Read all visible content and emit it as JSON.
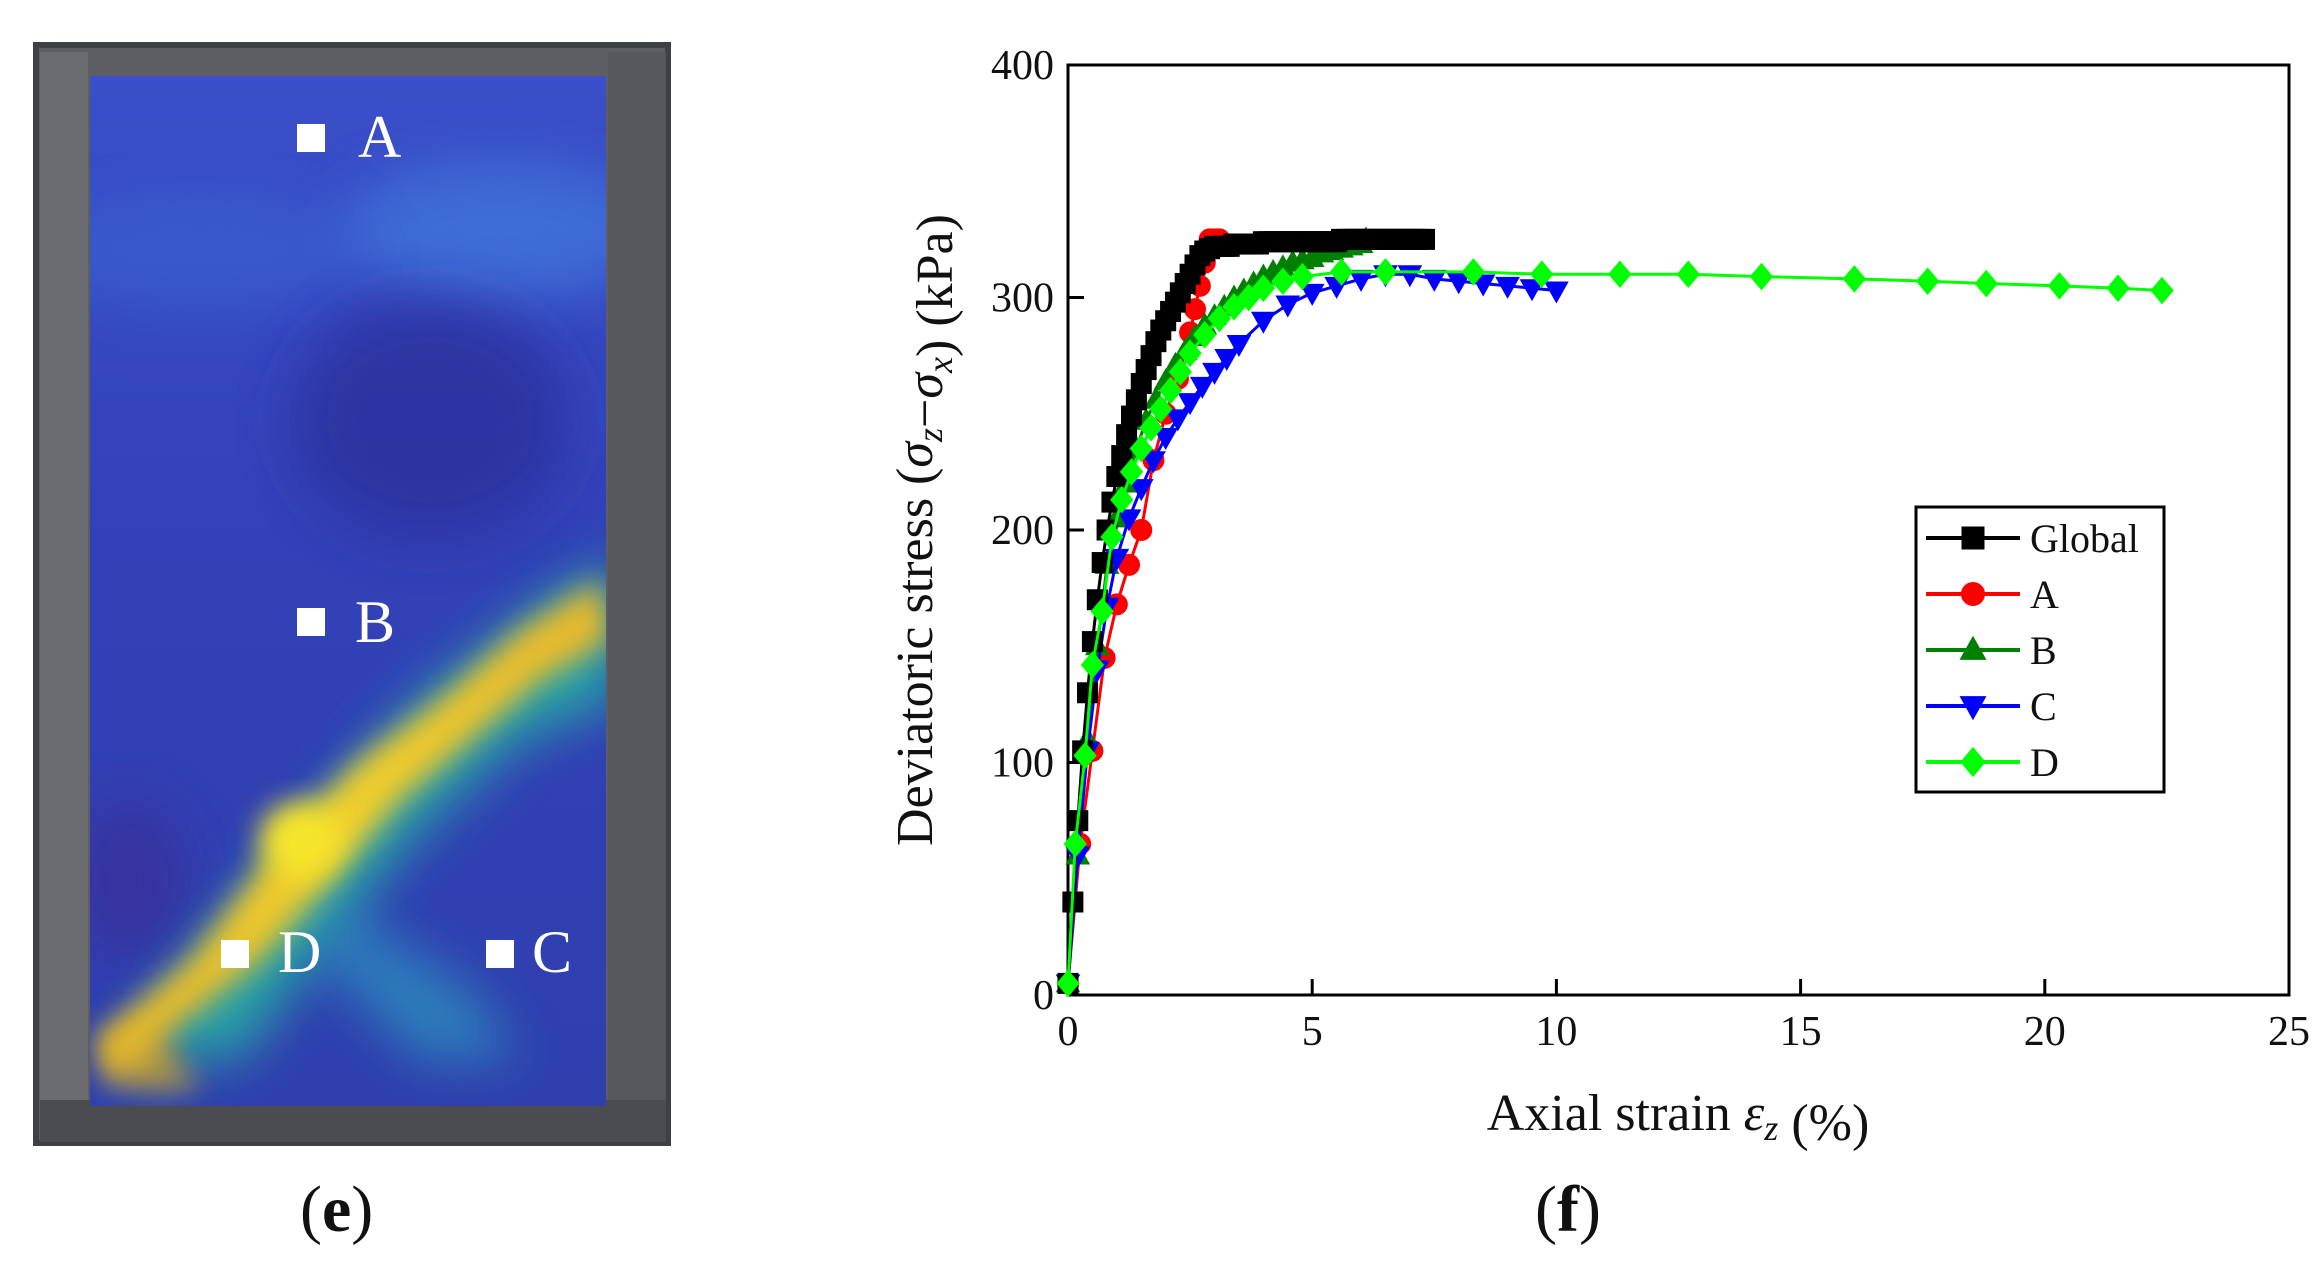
{
  "figure": {
    "panel_e": {
      "label": "e",
      "points": [
        "A",
        "B",
        "C",
        "D"
      ]
    },
    "panel_f": {
      "label": "f"
    }
  },
  "chart_data": {
    "type": "line",
    "title": "",
    "xlabel": "Axial strain εz (%)",
    "ylabel": "Deviatoric stress (σz−σx) (kPa)",
    "xlim": [
      0,
      25
    ],
    "ylim": [
      0,
      400
    ],
    "xticks": [
      0,
      5,
      10,
      15,
      20,
      25
    ],
    "yticks": [
      0,
      100,
      200,
      300,
      400
    ],
    "grid": false,
    "legend_position": "right",
    "series": [
      {
        "name": "Global",
        "color": "#000000",
        "marker": "square",
        "x": [
          0.0,
          0.1,
          0.2,
          0.3,
          0.4,
          0.5,
          0.6,
          0.7,
          0.8,
          0.9,
          1.0,
          1.1,
          1.2,
          1.3,
          1.4,
          1.5,
          1.6,
          1.7,
          1.8,
          1.9,
          2.0,
          2.1,
          2.2,
          2.3,
          2.4,
          2.5,
          2.6,
          2.7,
          2.8,
          2.9,
          3.0,
          3.1,
          3.2,
          3.3,
          3.4,
          3.5,
          3.6,
          3.7,
          3.8,
          3.9,
          4.0,
          4.1,
          4.2,
          4.3,
          4.4,
          4.5,
          4.6,
          4.7,
          4.8,
          4.9,
          5.0,
          5.1,
          5.2,
          5.3,
          5.4,
          5.5,
          5.6,
          5.7,
          5.8,
          5.9,
          6.0,
          6.1,
          6.2,
          6.3,
          6.4,
          6.5,
          6.6,
          6.7,
          6.8,
          6.9,
          7.0,
          7.1,
          7.2,
          7.3
        ],
        "y": [
          5,
          40,
          75,
          105,
          130,
          152,
          170,
          186,
          200,
          212,
          223,
          232,
          241,
          249,
          256,
          263,
          269,
          275,
          281,
          286,
          290,
          294,
          298,
          302,
          306,
          310,
          314,
          318,
          320,
          321,
          322,
          322,
          322,
          322,
          323,
          323,
          323,
          323,
          323,
          323,
          324,
          324,
          324,
          324,
          324,
          324,
          324,
          324,
          324,
          324,
          324,
          324,
          324,
          324,
          324,
          324,
          325,
          325,
          325,
          325,
          325,
          325,
          325,
          325,
          325,
          325,
          325,
          325,
          325,
          325,
          325,
          325,
          325,
          325
        ]
      },
      {
        "name": "A",
        "color": "#ff0000",
        "marker": "circle",
        "x": [
          0.0,
          0.25,
          0.5,
          0.75,
          1.0,
          1.25,
          1.5,
          1.75,
          2.0,
          2.25,
          2.5,
          2.6,
          2.7,
          2.8,
          2.85,
          2.9,
          2.95,
          3.0,
          3.05,
          3.1
        ],
        "y": [
          5,
          65,
          105,
          145,
          168,
          185,
          200,
          230,
          250,
          265,
          285,
          295,
          305,
          315,
          320,
          325,
          325,
          325,
          325,
          325
        ]
      },
      {
        "name": "B",
        "color": "#008000",
        "marker": "triangle-up",
        "x": [
          0.0,
          0.2,
          0.4,
          0.6,
          0.8,
          1.0,
          1.2,
          1.4,
          1.6,
          1.8,
          2.0,
          2.2,
          2.4,
          2.6,
          2.8,
          3.0,
          3.2,
          3.4,
          3.6,
          3.8,
          4.0,
          4.2,
          4.4,
          4.6,
          4.8,
          5.0,
          5.2,
          5.4,
          5.6,
          5.8,
          6.0,
          6.1
        ],
        "y": [
          5,
          60,
          110,
          150,
          185,
          205,
          220,
          235,
          247,
          256,
          264,
          271,
          277,
          283,
          288,
          292,
          296,
          300,
          303,
          306,
          309,
          311,
          313,
          315,
          316,
          317,
          319,
          320,
          321,
          322,
          323,
          325
        ]
      },
      {
        "name": "C",
        "color": "#0000ff",
        "marker": "triangle-down",
        "x": [
          0.0,
          0.2,
          0.4,
          0.6,
          0.8,
          1.0,
          1.25,
          1.5,
          1.75,
          2.0,
          2.25,
          2.5,
          2.75,
          3.0,
          3.25,
          3.5,
          4.0,
          4.5,
          5.0,
          5.5,
          6.0,
          6.5,
          7.0,
          7.5,
          8.0,
          8.5,
          9.0,
          9.5,
          10.0
        ],
        "y": [
          5,
          60,
          105,
          140,
          167,
          188,
          205,
          218,
          230,
          240,
          248,
          255,
          262,
          268,
          274,
          280,
          290,
          297,
          302,
          305,
          308,
          310,
          310,
          308,
          307,
          306,
          305,
          304,
          303
        ]
      },
      {
        "name": "D",
        "color": "#00ff00",
        "marker": "diamond",
        "x": [
          0.0,
          0.15,
          0.35,
          0.5,
          0.7,
          0.9,
          1.1,
          1.3,
          1.5,
          1.7,
          1.9,
          2.1,
          2.3,
          2.5,
          2.8,
          3.1,
          3.4,
          3.7,
          4.0,
          4.4,
          4.8,
          5.6,
          6.5,
          8.3,
          9.7,
          11.3,
          12.7,
          14.2,
          16.1,
          17.6,
          18.8,
          20.3,
          21.5,
          22.4
        ],
        "y": [
          5,
          65,
          103,
          142,
          165,
          197,
          213,
          225,
          235,
          244,
          252,
          260,
          268,
          276,
          284,
          291,
          296,
          300,
          304,
          307,
          309,
          311,
          311,
          311,
          310,
          310,
          310,
          309,
          308,
          307,
          306,
          305,
          304,
          303
        ]
      }
    ]
  }
}
